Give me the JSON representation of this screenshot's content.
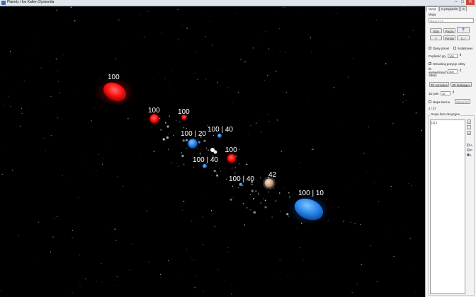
{
  "window": {
    "title": "Planety i fos Kalten Dyskordia",
    "minimize": "–",
    "maximize": "□",
    "close": "✕"
  },
  "game": {
    "labels": [
      {
        "id": "p1",
        "text": "100"
      },
      {
        "id": "p2",
        "text": "100"
      },
      {
        "id": "p3",
        "text": "100"
      },
      {
        "id": "p4",
        "text": "100 | 20"
      },
      {
        "id": "p5",
        "text": "100 | 40"
      },
      {
        "id": "p6",
        "text": "100"
      },
      {
        "id": "p7",
        "text": "100 | 40"
      },
      {
        "id": "p8",
        "text": "100 | 40"
      },
      {
        "id": "p9",
        "text": "42"
      },
      {
        "id": "p10",
        "text": "100 | 10"
      }
    ],
    "colors": {
      "red": "#ff1a1a",
      "blue": "#2e8cf0",
      "white": "#ffffff",
      "sun": "#d9b9a0"
    }
  },
  "panel": {
    "tabs": [
      {
        "label": "Opcje"
      },
      {
        "label": "O programie"
      },
      {
        "label": "E"
      }
    ],
    "map_label": "Mapa",
    "map_select": "Mapa 01 ▾",
    "buttons": {
      "stop": "Stop",
      "pause": "Pauza",
      "help": "?",
      "back": "<",
      "forward": "Ponów",
      "zoom": "|⊥|"
    },
    "options": {
      "show_planets": "Opisy planet",
      "extra": "dodatkowe i",
      "game_speed_label": "Prędkość gry",
      "game_speed_value": "100",
      "show_orbits": "Wizualizuj pozycje orbity",
      "orbit_points_label": "Ile wyświetlonych zaklęć",
      "orbit_points_value": "300"
    },
    "view_buttons": {
      "normal": "3D normalne",
      "stereo": "3D kratkujące"
    },
    "fov_label": "3D pole",
    "fov_value": "30",
    "minimap_label": "Mapa bieżna",
    "minimap_button": "Mapa fos",
    "counter": "2 / 37",
    "group_label": "Grupa form decyzyjne",
    "list_items": [
      "[1] 1"
    ],
    "side_buttons": [
      "+",
      "-",
      "×"
    ],
    "radios": [
      "A",
      "P",
      "L"
    ]
  }
}
